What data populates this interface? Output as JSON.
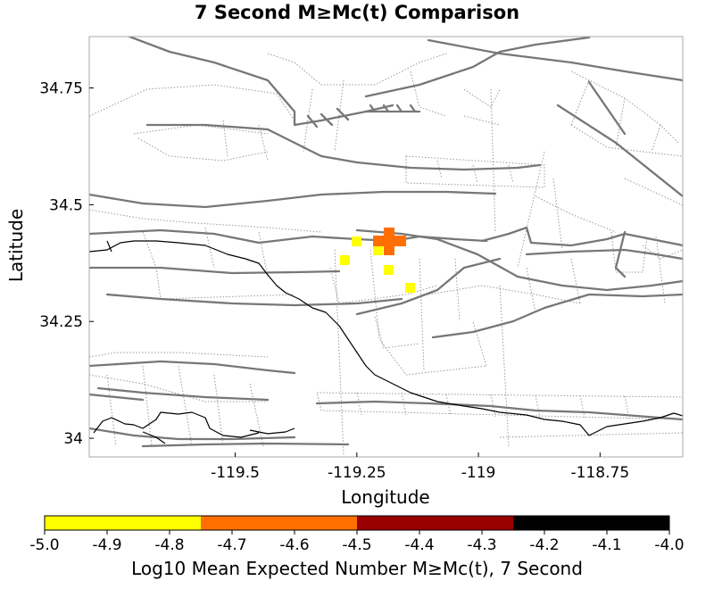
{
  "title": "7 Second M≥Mc(t) Comparison",
  "map": {
    "xlabel": "Longitude",
    "ylabel": "Latitude",
    "lon_range": [
      -119.8,
      -118.58
    ],
    "lat_range": [
      33.96,
      34.86
    ],
    "x_ticks": [
      {
        "value": -119.5,
        "label": "-119.5"
      },
      {
        "value": -119.25,
        "label": "-119.25"
      },
      {
        "value": -119.0,
        "label": "-119"
      },
      {
        "value": -118.75,
        "label": "-118.75"
      }
    ],
    "y_ticks": [
      {
        "value": 34.75,
        "label": "34.75"
      },
      {
        "value": 34.5,
        "label": "34.5"
      },
      {
        "value": 34.25,
        "label": "34.25"
      },
      {
        "value": 34.0,
        "label": "34"
      }
    ],
    "colors": {
      "yellow": "#ffff00",
      "orange": "#ff6e00",
      "fault": "#777777",
      "coast": "#000000"
    }
  },
  "colorbar": {
    "label": "Log10 Mean Expected Number M≥Mc(t), 7 Second",
    "range": [
      -5.0,
      -4.0
    ],
    "bins": [
      {
        "from": -5.0,
        "to": -4.75,
        "color": "#ffff00"
      },
      {
        "from": -4.75,
        "to": -4.5,
        "color": "#ff6e00"
      },
      {
        "from": -4.5,
        "to": -4.25,
        "color": "#9a0000"
      },
      {
        "from": -4.25,
        "to": -4.0,
        "color": "#000000"
      }
    ],
    "ticks": [
      "-5.0",
      "-4.9",
      "-4.8",
      "-4.7",
      "-4.6",
      "-4.5",
      "-4.4",
      "-4.3",
      "-4.2",
      "-4.1",
      "-4.0"
    ]
  }
}
